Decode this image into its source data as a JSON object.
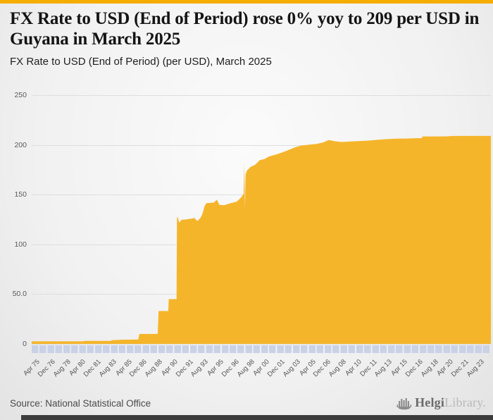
{
  "header": {
    "title": "FX Rate to USD (End of Period) rose 0% yoy to 209 per USD in Guyana in March 2025",
    "subtitle": "FX Rate to USD (End of Period) (per USD), March 2025"
  },
  "colors": {
    "top_bar": "#f5ad00",
    "area_fill": "#f5b52b",
    "band": "#c9d2e6",
    "gridline": "#dedede"
  },
  "chart_data": {
    "type": "area",
    "title": "FX Rate to USD (End of Period) (per USD), March 2025",
    "series_name": "FX Rate to USD (End of Period), Guyana",
    "ylabel": "per USD",
    "ylim": [
      0,
      250
    ],
    "grid": "horizontal",
    "legend_position": "none",
    "y_tick_labels": [
      "250",
      "200",
      "150",
      "100",
      "50.0",
      "0"
    ],
    "y_tick_values": [
      250,
      200,
      150,
      100,
      50,
      0
    ],
    "x_tick_labels": [
      "Apr 75",
      "Dec 76",
      "Aug 78",
      "Apr 80",
      "Dec 81",
      "Aug 83",
      "Apr 85",
      "Dec 86",
      "Aug 88",
      "Apr 90",
      "Dec 91",
      "Aug 93",
      "Apr 95",
      "Dec 96",
      "Aug 98",
      "Apr 00",
      "Dec 01",
      "Aug 03",
      "Apr 05",
      "Dec 06",
      "Aug 08",
      "Apr 10",
      "Dec 11",
      "Aug 13",
      "Apr 15",
      "Dec 16",
      "Aug 18",
      "Apr 20",
      "Dec 21",
      "Aug 23"
    ],
    "x_tick_interval_months": 20,
    "x_start": 1975.29,
    "x_end": 2025.25,
    "latest_value": 209,
    "yoy_change_pct": 0,
    "points": [
      [
        1975.29,
        2.55
      ],
      [
        1980.9,
        2.55
      ],
      [
        1981.0,
        3.0
      ],
      [
        1983.9,
        3.0
      ],
      [
        1984.0,
        3.75
      ],
      [
        1985.0,
        4.15
      ],
      [
        1986.9,
        4.4
      ],
      [
        1987.0,
        10
      ],
      [
        1989.0,
        10
      ],
      [
        1989.1,
        33
      ],
      [
        1990.15,
        33
      ],
      [
        1990.2,
        45
      ],
      [
        1991.05,
        45
      ],
      [
        1991.1,
        126
      ],
      [
        1991.15,
        128
      ],
      [
        1991.35,
        121.8
      ],
      [
        1991.6,
        124.8
      ],
      [
        1992.0,
        125
      ],
      [
        1992.6,
        125.8
      ],
      [
        1993.0,
        126.5
      ],
      [
        1993.3,
        123.5
      ],
      [
        1993.6,
        126
      ],
      [
        1993.85,
        130
      ],
      [
        1994.1,
        138.5
      ],
      [
        1994.3,
        141.5
      ],
      [
        1995.1,
        142
      ],
      [
        1995.45,
        144.9
      ],
      [
        1995.7,
        139.8
      ],
      [
        1996.2,
        139.4
      ],
      [
        1997.0,
        141.6
      ],
      [
        1997.6,
        143
      ],
      [
        1998.1,
        147.5
      ],
      [
        1998.35,
        150.8
      ],
      [
        1998.42,
        181
      ],
      [
        1998.47,
        150
      ],
      [
        1998.5,
        136.8
      ],
      [
        1998.55,
        170
      ],
      [
        1998.7,
        174
      ],
      [
        1999.1,
        177.8
      ],
      [
        1999.6,
        180
      ],
      [
        2000.1,
        184.7
      ],
      [
        2000.6,
        185.8
      ],
      [
        2001.1,
        188.3
      ],
      [
        2002.0,
        190.7
      ],
      [
        2003.0,
        194
      ],
      [
        2004.0,
        197.8
      ],
      [
        2004.6,
        199.3
      ],
      [
        2005.5,
        200.2
      ],
      [
        2006.3,
        201
      ],
      [
        2007.0,
        202.5
      ],
      [
        2007.6,
        204.8
      ],
      [
        2008.3,
        203.6
      ],
      [
        2009.0,
        202.9
      ],
      [
        2010.0,
        203.4
      ],
      [
        2011.0,
        203.9
      ],
      [
        2012.0,
        204.3
      ],
      [
        2013.0,
        205.2
      ],
      [
        2014.0,
        205.8
      ],
      [
        2015.0,
        206.2
      ],
      [
        2016.0,
        206.4
      ],
      [
        2017.0,
        206.7
      ],
      [
        2017.75,
        206.8
      ],
      [
        2017.8,
        208.5
      ],
      [
        2019.0,
        208.5
      ],
      [
        2020.5,
        208.6
      ],
      [
        2021.0,
        208.9
      ],
      [
        2022.0,
        209
      ],
      [
        2025.25,
        209
      ]
    ]
  },
  "footer": {
    "source": "Source: National Statistical Office",
    "logo_bold": "Helgi",
    "logo_light": "Library",
    "logo_suffix": "."
  }
}
